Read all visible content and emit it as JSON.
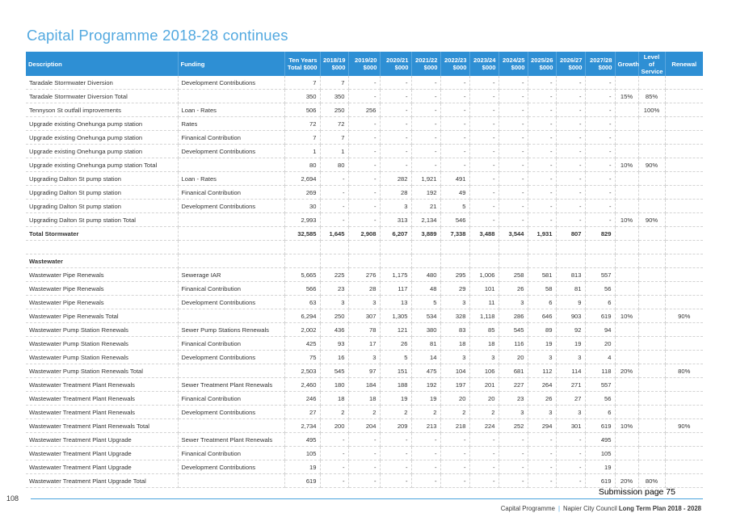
{
  "page": {
    "title": "Capital Programme 2018-28 continues",
    "page_number": "108",
    "submission": "Submission page 75",
    "footer_section": "Capital Programme",
    "footer_sep": "|",
    "footer_council": "Napier City Council",
    "footer_plan": "Long Term Plan 2018 - 2028"
  },
  "table": {
    "headers": [
      "Description",
      "Funding",
      "Ten Years Total $000",
      "2018/19 $000",
      "2019/20 $000",
      "2020/21 $000",
      "2021/22 $000",
      "2022/23 $000",
      "2023/24 $000",
      "2024/25 $000",
      "2025/26 $000",
      "2026/27 $000",
      "2027/28 $000",
      "Growth",
      "Level of Service",
      "Renewal"
    ],
    "rows": [
      {
        "kind": "row",
        "cells": [
          "Taradale Stormwater Diversion",
          "Development Contributions",
          "7",
          "7",
          "-",
          "-",
          "-",
          "-",
          "-",
          "-",
          "-",
          "-",
          "-",
          "",
          "",
          ""
        ]
      },
      {
        "kind": "total",
        "cells": [
          "Taradale Stormwater Diversion Total",
          "",
          "350",
          "350",
          "-",
          "-",
          "-",
          "-",
          "-",
          "-",
          "-",
          "-",
          "-",
          "15%",
          "85%",
          ""
        ]
      },
      {
        "kind": "row",
        "cells": [
          "Tennyson St outfall improvements",
          "Loan - Rates",
          "506",
          "250",
          "256",
          "-",
          "-",
          "-",
          "-",
          "-",
          "-",
          "-",
          "-",
          "",
          "100%",
          ""
        ]
      },
      {
        "kind": "row",
        "cells": [
          "Upgrade existing Onehunga pump station",
          "Rates",
          "72",
          "72",
          "-",
          "-",
          "-",
          "-",
          "-",
          "-",
          "-",
          "-",
          "-",
          "",
          "",
          ""
        ]
      },
      {
        "kind": "row",
        "cells": [
          "Upgrade existing Onehunga pump station",
          "Finanical Contribution",
          "7",
          "7",
          "-",
          "-",
          "-",
          "-",
          "-",
          "-",
          "-",
          "-",
          "-",
          "",
          "",
          ""
        ]
      },
      {
        "kind": "row",
        "cells": [
          "Upgrade existing Onehunga pump station",
          "Development Contributions",
          "1",
          "1",
          "-",
          "-",
          "-",
          "-",
          "-",
          "-",
          "-",
          "-",
          "-",
          "",
          "",
          ""
        ]
      },
      {
        "kind": "total",
        "cells": [
          "Upgrade existing Onehunga pump station Total",
          "",
          "80",
          "80",
          "-",
          "-",
          "-",
          "-",
          "-",
          "-",
          "-",
          "-",
          "-",
          "10%",
          "90%",
          ""
        ]
      },
      {
        "kind": "row",
        "cells": [
          "Upgrading Dalton St pump station",
          "Loan - Rates",
          "2,694",
          "-",
          "-",
          "282",
          "1,921",
          "491",
          "-",
          "-",
          "-",
          "-",
          "-",
          "",
          "",
          ""
        ]
      },
      {
        "kind": "row",
        "cells": [
          "Upgrading Dalton St pump station",
          "Finanical Contribution",
          "269",
          "-",
          "-",
          "28",
          "192",
          "49",
          "-",
          "-",
          "-",
          "-",
          "-",
          "",
          "",
          ""
        ]
      },
      {
        "kind": "row",
        "cells": [
          "Upgrading Dalton St pump station",
          "Development Contributions",
          "30",
          "-",
          "-",
          "3",
          "21",
          "5",
          "-",
          "-",
          "-",
          "-",
          "-",
          "",
          "",
          ""
        ]
      },
      {
        "kind": "total",
        "cells": [
          "Upgrading Dalton St pump station Total",
          "",
          "2,993",
          "-",
          "-",
          "313",
          "2,134",
          "546",
          "-",
          "-",
          "-",
          "-",
          "-",
          "10%",
          "90%",
          ""
        ]
      },
      {
        "kind": "grand",
        "cells": [
          "Total Stormwater",
          "",
          "32,585",
          "1,645",
          "2,908",
          "6,207",
          "3,889",
          "7,338",
          "3,488",
          "3,544",
          "1,931",
          "807",
          "829",
          "",
          "",
          ""
        ]
      },
      {
        "kind": "blank",
        "cells": [
          "",
          "",
          "",
          "",
          "",
          "",
          "",
          "",
          "",
          "",
          "",
          "",
          "",
          "",
          "",
          ""
        ]
      },
      {
        "kind": "section",
        "cells": [
          "Wastewater",
          "",
          "",
          "",
          "",
          "",
          "",
          "",
          "",
          "",
          "",
          "",
          "",
          "",
          "",
          ""
        ]
      },
      {
        "kind": "row",
        "cells": [
          "Wastewater Pipe Renewals",
          "Sewerage IAR",
          "5,665",
          "225",
          "276",
          "1,175",
          "480",
          "295",
          "1,006",
          "258",
          "581",
          "813",
          "557",
          "",
          "",
          ""
        ]
      },
      {
        "kind": "row",
        "cells": [
          "Wastewater Pipe Renewals",
          "Finanical Contribution",
          "566",
          "23",
          "28",
          "117",
          "48",
          "29",
          "101",
          "26",
          "58",
          "81",
          "56",
          "",
          "",
          ""
        ]
      },
      {
        "kind": "row",
        "cells": [
          "Wastewater Pipe Renewals",
          "Development Contributions",
          "63",
          "3",
          "3",
          "13",
          "5",
          "3",
          "11",
          "3",
          "6",
          "9",
          "6",
          "",
          "",
          ""
        ]
      },
      {
        "kind": "total",
        "cells": [
          "Wastewater Pipe Renewals Total",
          "",
          "6,294",
          "250",
          "307",
          "1,305",
          "534",
          "328",
          "1,118",
          "286",
          "646",
          "903",
          "619",
          "10%",
          "",
          "90%"
        ]
      },
      {
        "kind": "row",
        "cells": [
          "Wastewater Pump Station Renewals",
          "Sewer Pump Stations Renewals",
          "2,002",
          "436",
          "78",
          "121",
          "380",
          "83",
          "85",
          "545",
          "89",
          "92",
          "94",
          "",
          "",
          ""
        ]
      },
      {
        "kind": "row",
        "cells": [
          "Wastewater Pump Station Renewals",
          "Finanical Contribution",
          "425",
          "93",
          "17",
          "26",
          "81",
          "18",
          "18",
          "116",
          "19",
          "19",
          "20",
          "",
          "",
          ""
        ]
      },
      {
        "kind": "row",
        "cells": [
          "Wastewater Pump Station Renewals",
          "Development Contributions",
          "75",
          "16",
          "3",
          "5",
          "14",
          "3",
          "3",
          "20",
          "3",
          "3",
          "4",
          "",
          "",
          ""
        ]
      },
      {
        "kind": "total",
        "cells": [
          "Wastewater Pump Station Renewals Total",
          "",
          "2,503",
          "545",
          "97",
          "151",
          "475",
          "104",
          "106",
          "681",
          "112",
          "114",
          "118",
          "20%",
          "",
          "80%"
        ]
      },
      {
        "kind": "row",
        "cells": [
          "Wastewater Treatment Plant Renewals",
          "Sewer Treatment Plant Renewals",
          "2,460",
          "180",
          "184",
          "188",
          "192",
          "197",
          "201",
          "227",
          "264",
          "271",
          "557",
          "",
          "",
          ""
        ]
      },
      {
        "kind": "row",
        "cells": [
          "Wastewater Treatment Plant Renewals",
          "Finanical Contribution",
          "246",
          "18",
          "18",
          "19",
          "19",
          "20",
          "20",
          "23",
          "26",
          "27",
          "56",
          "",
          "",
          ""
        ]
      },
      {
        "kind": "row",
        "cells": [
          "Wastewater Treatment Plant Renewals",
          "Development Contributions",
          "27",
          "2",
          "2",
          "2",
          "2",
          "2",
          "2",
          "3",
          "3",
          "3",
          "6",
          "",
          "",
          ""
        ]
      },
      {
        "kind": "total",
        "cells": [
          "Wastewater Treatment Plant Renewals Total",
          "",
          "2,734",
          "200",
          "204",
          "209",
          "213",
          "218",
          "224",
          "252",
          "294",
          "301",
          "619",
          "10%",
          "",
          "90%"
        ]
      },
      {
        "kind": "row",
        "cells": [
          "Wastewater Treatment Plant Upgrade",
          "Sewer Treatment Plant Renewals",
          "495",
          "-",
          "-",
          "-",
          "-",
          "-",
          "-",
          "-",
          "-",
          "-",
          "495",
          "",
          "",
          ""
        ]
      },
      {
        "kind": "row",
        "cells": [
          "Wastewater Treatment Plant Upgrade",
          "Finanical Contribution",
          "105",
          "-",
          "-",
          "-",
          "-",
          "-",
          "-",
          "-",
          "-",
          "-",
          "105",
          "",
          "",
          ""
        ]
      },
      {
        "kind": "row",
        "cells": [
          "Wastewater Treatment Plant Upgrade",
          "Development Contributions",
          "19",
          "-",
          "-",
          "-",
          "-",
          "-",
          "-",
          "-",
          "-",
          "-",
          "19",
          "",
          "",
          ""
        ]
      },
      {
        "kind": "total",
        "cells": [
          "Wastewater Treatment Plant Upgrade Total",
          "",
          "619",
          "-",
          "-",
          "-",
          "-",
          "-",
          "-",
          "-",
          "-",
          "-",
          "619",
          "20%",
          "80%",
          ""
        ]
      }
    ]
  },
  "colors": {
    "title": "#53a9e0",
    "header_bg": "#2e8fd4",
    "rule": "#4aa3de"
  }
}
